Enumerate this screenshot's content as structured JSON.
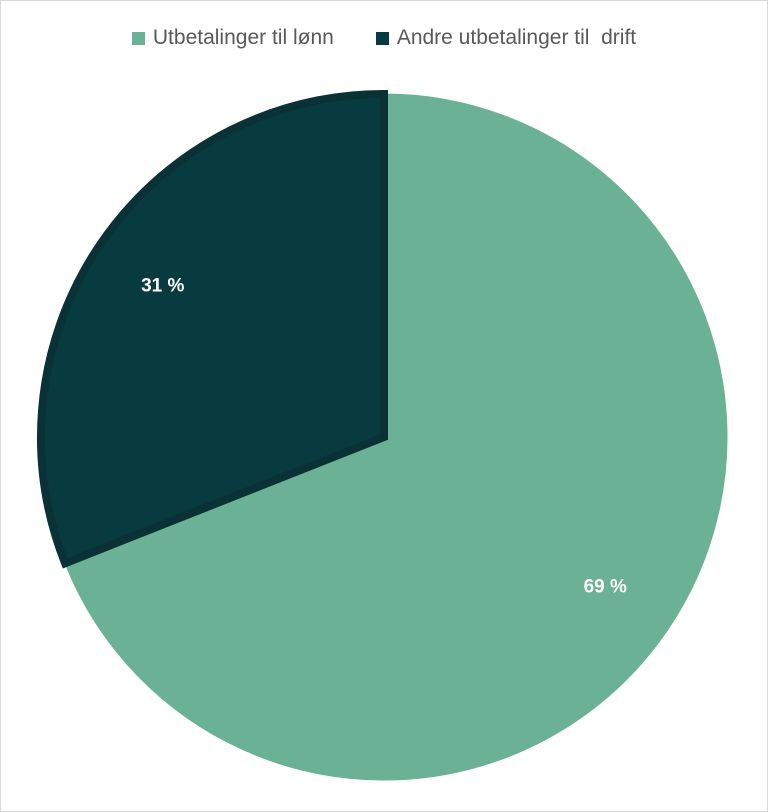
{
  "chart_data": {
    "type": "pie",
    "categories": [
      "Utbetalinger til lønn",
      "Andre utbetalinger til  drift"
    ],
    "values": [
      69,
      31
    ],
    "labels": [
      "69 %",
      "31 %"
    ],
    "colors": [
      "#6ab196",
      "#073b40"
    ],
    "legend_position": "top",
    "start_angle_deg": 0,
    "direction": "clockwise"
  }
}
